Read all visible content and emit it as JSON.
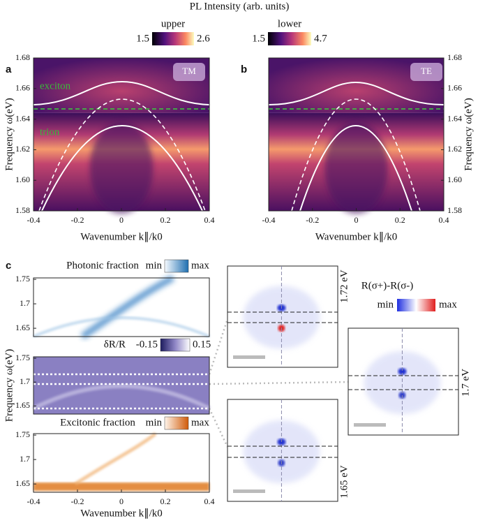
{
  "header": {
    "title": "PL Intensity (arb. units)",
    "colorbars": [
      {
        "label": "upper",
        "range": [
          1.5,
          2.6
        ]
      },
      {
        "label": "lower",
        "range": [
          1.5,
          4.7
        ]
      }
    ]
  },
  "chart_data": [
    {
      "type": "heatmap",
      "panel": "a",
      "badge": "TM",
      "colormap": "magma",
      "annotations": [
        "exciton",
        "trion"
      ],
      "xlim": [
        -0.4,
        0.4
      ],
      "xticks": [
        -0.4,
        -0.2,
        0,
        0.2,
        0.4
      ],
      "ylim": [
        1.58,
        1.68
      ],
      "yticks": [
        1.58,
        {
          "value": 1.6,
          "label": "1.60"
        },
        1.62,
        1.64,
        1.66,
        1.68
      ],
      "xlabel": "Wavenumber k∥/k0",
      "ylabel": "Frequency ω(eV)"
    },
    {
      "type": "heatmap",
      "panel": "b",
      "badge": "TE",
      "colormap": "magma",
      "xlim": [
        -0.4,
        0.4
      ],
      "xticks": [
        -0.4,
        -0.2,
        0,
        0.2,
        0.4
      ],
      "ylim": [
        1.58,
        1.68
      ],
      "yticks": [
        1.58,
        {
          "value": 1.6,
          "label": "1.60"
        },
        1.62,
        1.64,
        1.66,
        1.68
      ],
      "xlabel": "Wavenumber k∥/k0",
      "ylabel": "Frequency ω(eV)"
    },
    {
      "type": "heatmap",
      "panel": "c",
      "title": "Photonic fraction",
      "colormap": "blues",
      "colorbar": {
        "min": "min",
        "max": "max"
      },
      "xlim": [
        -0.4,
        0.4
      ],
      "ylim": [
        1.633,
        1.753
      ],
      "yticks": [
        1.65,
        1.7,
        1.75
      ]
    },
    {
      "type": "heatmap",
      "title": "δR/R",
      "colormap": "purples",
      "colorbar": {
        "min": -0.15,
        "max": 0.15
      },
      "xlim": [
        -0.4,
        0.4
      ],
      "ylim": [
        1.633,
        1.753
      ],
      "yticks": [
        1.65,
        1.7,
        1.75
      ],
      "ylabel": "Frequency ω(eV)"
    },
    {
      "type": "heatmap",
      "title": "Excitonic fraction",
      "colormap": "oranges",
      "colorbar": {
        "min": "min",
        "max": "max"
      },
      "xlim": [
        -0.4,
        0.4
      ],
      "xticks": [
        -0.4,
        -0.2,
        0,
        0.2,
        0.4
      ],
      "ylim": [
        1.633,
        1.753
      ],
      "yticks": [
        1.65,
        1.7,
        1.75
      ],
      "xlabel": "Wavenumber k∥/k0"
    }
  ],
  "insets": {
    "colorbar": {
      "title": "R(σ+)-R(σ-)",
      "min": "min",
      "max": "max"
    },
    "images": [
      {
        "label": "1.72 eV"
      },
      {
        "label": "1.65 eV"
      },
      {
        "label": "1.7 eV"
      }
    ]
  }
}
